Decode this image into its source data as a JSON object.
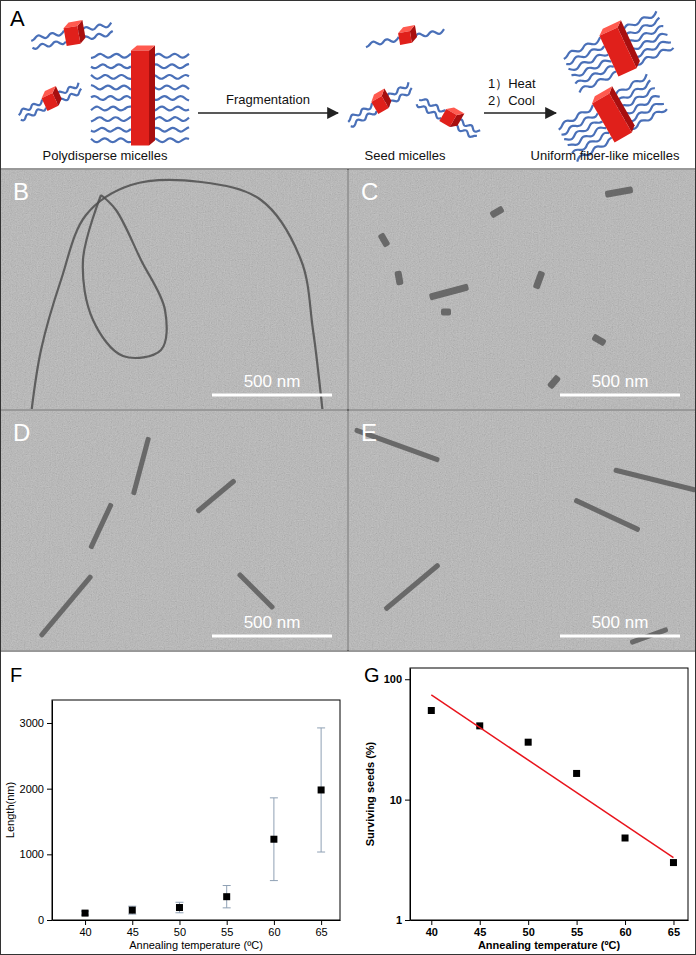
{
  "schematic": {
    "label": "A",
    "start": "Polydisperse micelles",
    "step1": "Fragmentation",
    "middle": "Seed micelles",
    "step2a": "1）Heat",
    "step2b": "2）Cool",
    "end": "Uniform fiber-like micelles"
  },
  "micrographs": [
    {
      "label": "B",
      "scale_bar": "500 nm"
    },
    {
      "label": "C",
      "scale_bar": "500 nm"
    },
    {
      "label": "D",
      "scale_bar": "500 nm"
    },
    {
      "label": "E",
      "scale_bar": "500 nm"
    }
  ],
  "chart_data": [
    {
      "type": "scatter",
      "title": "F",
      "xlabel": "Annealing temperature (ºC)",
      "ylabel": "Length(nm)",
      "x": [
        40,
        45,
        50,
        55,
        60,
        65
      ],
      "xlim": [
        36.5,
        67
      ],
      "xticks": [
        40,
        45,
        50,
        55,
        60,
        65
      ],
      "ylim": [
        0,
        3350
      ],
      "yticks": [
        0,
        1000,
        2000,
        3000
      ],
      "series": [
        {
          "values": [
            105,
            150,
            190,
            355,
            1230,
            1980
          ],
          "error": [
            30,
            60,
            80,
            170,
            630,
            945
          ],
          "color": "#000000",
          "marker": "square"
        }
      ]
    },
    {
      "type": "scatter",
      "title": "G",
      "xlabel": "Annealing temperature (ºC)",
      "ylabel": "Surviving seeds (%)",
      "x": [
        40,
        45,
        50,
        55,
        60,
        65
      ],
      "xlim": [
        37.8,
        66.5
      ],
      "xticks": [
        40,
        45,
        50,
        55,
        60,
        65
      ],
      "ylim": [
        1,
        124
      ],
      "yticks": [
        1,
        10,
        100
      ],
      "log": "y",
      "series": [
        {
          "type": "scatter",
          "values": [
            55,
            41,
            30,
            16.5,
            4.8,
            3.0
          ],
          "color": "#000000",
          "marker": "square"
        },
        {
          "type": "line",
          "x": [
            40,
            65
          ],
          "values": [
            74,
            3.3
          ],
          "color": "#e8141c",
          "line_style": "solid"
        }
      ]
    }
  ]
}
